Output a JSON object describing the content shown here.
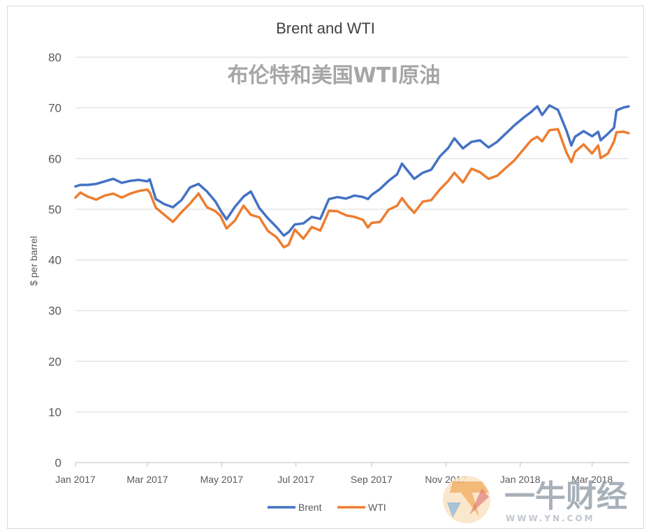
{
  "chart_data": {
    "type": "line",
    "title": "Brent and WTI",
    "annotation": "布伦特和美国WTI原油",
    "ylabel": "$ per barrel",
    "xlabel": "",
    "ylim": [
      0,
      80
    ],
    "yticks": [
      0,
      10,
      20,
      30,
      40,
      50,
      60,
      70,
      80
    ],
    "xlim": [
      "2017-01-01",
      "2018-03-31"
    ],
    "xticks": [
      {
        "date": "2017-01-01",
        "label": "Jan 2017"
      },
      {
        "date": "2017-03-01",
        "label": "Mar 2017"
      },
      {
        "date": "2017-05-01",
        "label": "May 2017"
      },
      {
        "date": "2017-07-01",
        "label": "Jul 2017"
      },
      {
        "date": "2017-09-01",
        "label": "Sep 2017"
      },
      {
        "date": "2017-11-01",
        "label": "Nov 2017"
      },
      {
        "date": "2018-01-01",
        "label": "Jan 2018"
      },
      {
        "date": "2018-03-01",
        "label": "Mar 2018"
      }
    ],
    "grid": true,
    "legend_position": "bottom",
    "series": [
      {
        "name": "Brent",
        "color": "#4472c4",
        "points": [
          [
            "2017-01-01",
            54.5
          ],
          [
            "2017-01-05",
            54.8
          ],
          [
            "2017-01-11",
            54.8
          ],
          [
            "2017-01-18",
            55.0
          ],
          [
            "2017-01-25",
            55.5
          ],
          [
            "2017-02-01",
            56.0
          ],
          [
            "2017-02-08",
            55.2
          ],
          [
            "2017-02-15",
            55.6
          ],
          [
            "2017-02-22",
            55.8
          ],
          [
            "2017-03-01",
            55.5
          ],
          [
            "2017-03-03",
            55.9
          ],
          [
            "2017-03-08",
            52.0
          ],
          [
            "2017-03-15",
            51.0
          ],
          [
            "2017-03-22",
            50.4
          ],
          [
            "2017-03-29",
            51.8
          ],
          [
            "2017-04-05",
            54.3
          ],
          [
            "2017-04-12",
            55.0
          ],
          [
            "2017-04-19",
            53.5
          ],
          [
            "2017-04-26",
            51.5
          ],
          [
            "2017-04-30",
            49.8
          ],
          [
            "2017-05-05",
            48.0
          ],
          [
            "2017-05-12",
            50.5
          ],
          [
            "2017-05-19",
            52.5
          ],
          [
            "2017-05-25",
            53.5
          ],
          [
            "2017-06-01",
            50.2
          ],
          [
            "2017-06-08",
            48.2
          ],
          [
            "2017-06-15",
            46.5
          ],
          [
            "2017-06-21",
            44.8
          ],
          [
            "2017-06-25",
            45.5
          ],
          [
            "2017-06-30",
            47.0
          ],
          [
            "2017-07-07",
            47.2
          ],
          [
            "2017-07-14",
            48.5
          ],
          [
            "2017-07-21",
            48.1
          ],
          [
            "2017-07-28",
            52.0
          ],
          [
            "2017-08-04",
            52.4
          ],
          [
            "2017-08-11",
            52.1
          ],
          [
            "2017-08-18",
            52.7
          ],
          [
            "2017-08-25",
            52.4
          ],
          [
            "2017-08-29",
            52.0
          ],
          [
            "2017-09-01",
            52.8
          ],
          [
            "2017-09-08",
            54.0
          ],
          [
            "2017-09-15",
            55.6
          ],
          [
            "2017-09-22",
            56.9
          ],
          [
            "2017-09-26",
            59.0
          ],
          [
            "2017-10-01",
            57.5
          ],
          [
            "2017-10-06",
            56.0
          ],
          [
            "2017-10-13",
            57.2
          ],
          [
            "2017-10-20",
            57.8
          ],
          [
            "2017-10-27",
            60.4
          ],
          [
            "2017-11-03",
            62.1
          ],
          [
            "2017-11-08",
            64.0
          ],
          [
            "2017-11-15",
            62.0
          ],
          [
            "2017-11-22",
            63.3
          ],
          [
            "2017-11-29",
            63.6
          ],
          [
            "2017-12-06",
            62.2
          ],
          [
            "2017-12-13",
            63.3
          ],
          [
            "2017-12-20",
            64.9
          ],
          [
            "2017-12-27",
            66.5
          ],
          [
            "2018-01-04",
            68.1
          ],
          [
            "2018-01-10",
            69.2
          ],
          [
            "2018-01-15",
            70.3
          ],
          [
            "2018-01-19",
            68.6
          ],
          [
            "2018-01-25",
            70.5
          ],
          [
            "2018-02-01",
            69.6
          ],
          [
            "2018-02-08",
            65.5
          ],
          [
            "2018-02-12",
            62.6
          ],
          [
            "2018-02-15",
            64.3
          ],
          [
            "2018-02-22",
            65.4
          ],
          [
            "2018-03-01",
            64.4
          ],
          [
            "2018-03-06",
            65.3
          ],
          [
            "2018-03-08",
            63.6
          ],
          [
            "2018-03-14",
            64.9
          ],
          [
            "2018-03-19",
            66.1
          ],
          [
            "2018-03-21",
            69.5
          ],
          [
            "2018-03-27",
            70.1
          ],
          [
            "2018-03-31",
            70.3
          ]
        ]
      },
      {
        "name": "WTI",
        "color": "#ed7d31",
        "points": [
          [
            "2017-01-01",
            52.3
          ],
          [
            "2017-01-05",
            53.3
          ],
          [
            "2017-01-11",
            52.5
          ],
          [
            "2017-01-18",
            51.9
          ],
          [
            "2017-01-25",
            52.7
          ],
          [
            "2017-02-01",
            53.1
          ],
          [
            "2017-02-08",
            52.3
          ],
          [
            "2017-02-15",
            53.1
          ],
          [
            "2017-02-22",
            53.6
          ],
          [
            "2017-03-01",
            53.9
          ],
          [
            "2017-03-03",
            53.3
          ],
          [
            "2017-03-08",
            50.3
          ],
          [
            "2017-03-15",
            48.9
          ],
          [
            "2017-03-22",
            47.5
          ],
          [
            "2017-03-29",
            49.4
          ],
          [
            "2017-04-05",
            51.1
          ],
          [
            "2017-04-12",
            53.1
          ],
          [
            "2017-04-19",
            50.4
          ],
          [
            "2017-04-26",
            49.6
          ],
          [
            "2017-04-30",
            48.7
          ],
          [
            "2017-05-05",
            46.2
          ],
          [
            "2017-05-12",
            47.8
          ],
          [
            "2017-05-19",
            50.7
          ],
          [
            "2017-05-25",
            48.9
          ],
          [
            "2017-06-01",
            48.4
          ],
          [
            "2017-06-08",
            45.7
          ],
          [
            "2017-06-15",
            44.5
          ],
          [
            "2017-06-21",
            42.5
          ],
          [
            "2017-06-25",
            43.0
          ],
          [
            "2017-06-30",
            46.0
          ],
          [
            "2017-07-07",
            44.2
          ],
          [
            "2017-07-14",
            46.5
          ],
          [
            "2017-07-21",
            45.8
          ],
          [
            "2017-07-28",
            49.7
          ],
          [
            "2017-08-04",
            49.6
          ],
          [
            "2017-08-11",
            48.8
          ],
          [
            "2017-08-18",
            48.5
          ],
          [
            "2017-08-25",
            47.9
          ],
          [
            "2017-08-29",
            46.4
          ],
          [
            "2017-09-01",
            47.3
          ],
          [
            "2017-09-08",
            47.5
          ],
          [
            "2017-09-15",
            49.9
          ],
          [
            "2017-09-22",
            50.7
          ],
          [
            "2017-09-26",
            52.2
          ],
          [
            "2017-10-01",
            50.6
          ],
          [
            "2017-10-06",
            49.3
          ],
          [
            "2017-10-13",
            51.5
          ],
          [
            "2017-10-20",
            51.8
          ],
          [
            "2017-10-27",
            53.9
          ],
          [
            "2017-11-03",
            55.6
          ],
          [
            "2017-11-08",
            57.2
          ],
          [
            "2017-11-15",
            55.3
          ],
          [
            "2017-11-22",
            58.0
          ],
          [
            "2017-11-29",
            57.3
          ],
          [
            "2017-12-06",
            56.0
          ],
          [
            "2017-12-13",
            56.6
          ],
          [
            "2017-12-20",
            58.1
          ],
          [
            "2017-12-27",
            59.6
          ],
          [
            "2018-01-04",
            61.9
          ],
          [
            "2018-01-10",
            63.6
          ],
          [
            "2018-01-15",
            64.3
          ],
          [
            "2018-01-19",
            63.4
          ],
          [
            "2018-01-25",
            65.6
          ],
          [
            "2018-02-01",
            65.8
          ],
          [
            "2018-02-08",
            61.2
          ],
          [
            "2018-02-12",
            59.3
          ],
          [
            "2018-02-15",
            61.3
          ],
          [
            "2018-02-22",
            62.8
          ],
          [
            "2018-03-01",
            61.0
          ],
          [
            "2018-03-06",
            62.6
          ],
          [
            "2018-03-08",
            60.1
          ],
          [
            "2018-03-14",
            61.0
          ],
          [
            "2018-03-19",
            63.4
          ],
          [
            "2018-03-21",
            65.2
          ],
          [
            "2018-03-27",
            65.3
          ],
          [
            "2018-03-31",
            65.0
          ]
        ]
      }
    ]
  },
  "watermark": {
    "text": "一牛财经",
    "url": "WWW.YN.COM",
    "colors": [
      "#f5a623",
      "#e94b3c",
      "#4a90d9"
    ]
  }
}
